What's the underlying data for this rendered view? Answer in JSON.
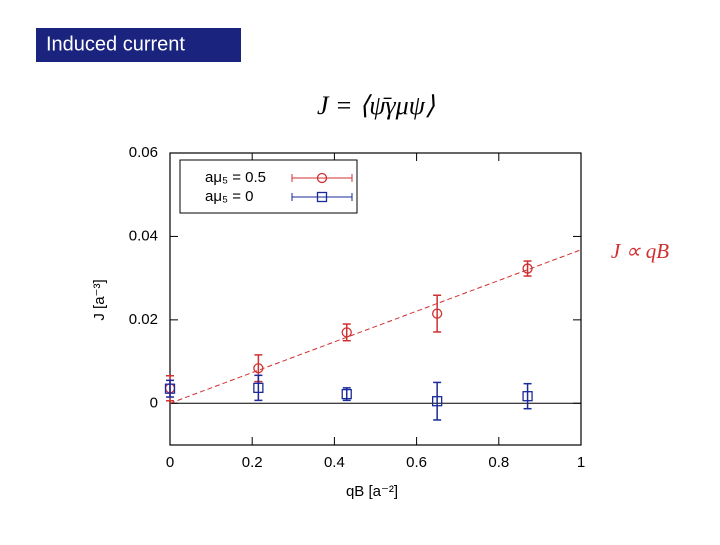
{
  "slide_title": "Induced current",
  "chart_data": {
    "type": "errorbar",
    "title": "J = ⟨ψ̄γμψ⟩",
    "x_label": "qB [a⁻²]",
    "y_label": "J [a⁻³]",
    "xlim": [
      0,
      1
    ],
    "xticks": [
      0,
      0.2,
      0.4,
      0.6,
      0.8,
      1
    ],
    "ylim": [
      -0.01,
      0.06
    ],
    "yticks": [
      0,
      0.02,
      0.04,
      0.06
    ],
    "legend": "upper left",
    "zero_line": true,
    "series": [
      {
        "name": "aμ₅ = 0.5",
        "color": "#d03030",
        "marker": "circle",
        "x": [
          0,
          0.215,
          0.43,
          0.65,
          0.87
        ],
        "values": [
          0.0036,
          0.0084,
          0.017,
          0.0215,
          0.0323
        ],
        "errors": [
          0.003,
          0.0032,
          0.002,
          0.0044,
          0.0018
        ]
      },
      {
        "name": "aμ₅ = 0",
        "color": "#1a2a9a",
        "marker": "square",
        "x": [
          0,
          0.215,
          0.43,
          0.65,
          0.87
        ],
        "values": [
          0.0035,
          0.0037,
          0.0022,
          0.0005,
          0.0017
        ],
        "errors": [
          0.002,
          0.003,
          0.0015,
          0.0045,
          0.003
        ]
      }
    ],
    "fit_line": {
      "color": "#d03030",
      "x": [
        0,
        1
      ],
      "values": [
        0,
        0.0368
      ]
    },
    "annotation": "J ∝ qB"
  }
}
